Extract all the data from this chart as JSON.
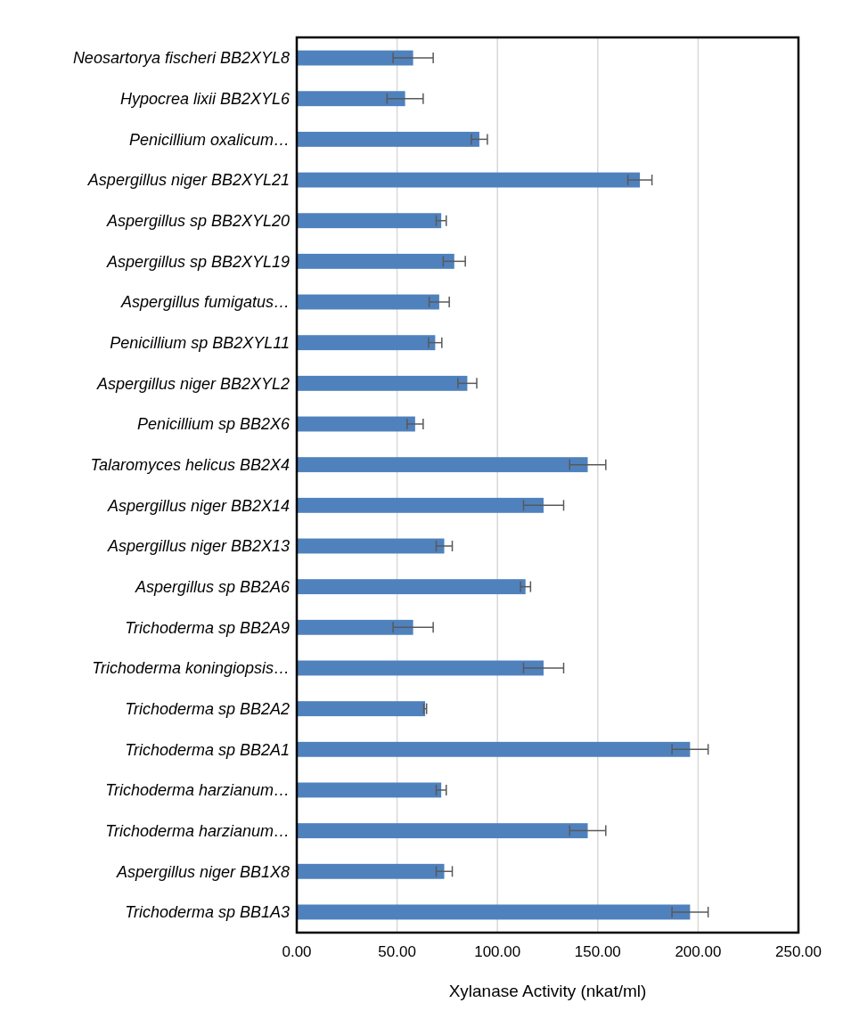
{
  "chart_data": {
    "type": "bar",
    "orientation": "horizontal",
    "xlabel": "Xylanase Activity (nkat/ml)",
    "categories": [
      "Neosartorya fischeri BB2XYL8",
      "Hypocrea lixii BB2XYL6",
      "Penicillium oxalicum…",
      "Aspergillus niger BB2XYL21",
      "Aspergillus sp BB2XYL20",
      "Aspergillus sp BB2XYL19",
      "Aspergillus fumigatus…",
      "Penicillium sp BB2XYL11",
      "Aspergillus niger BB2XYL2",
      "Penicillium sp BB2X6",
      "Talaromyces helicus BB2X4",
      "Aspergillus niger BB2X14",
      "Aspergillus niger BB2X13",
      "Aspergillus sp BB2A6",
      "Trichoderma sp BB2A9",
      "Trichoderma koningiopsis…",
      "Trichoderma sp BB2A2",
      "Trichoderma sp BB2A1",
      "Trichoderma harzianum…",
      "Trichoderma harzianum…",
      "Aspergillus niger BB1X8",
      "Trichoderma sp BB1A3"
    ],
    "values": [
      58,
      54,
      91,
      171,
      72,
      78.5,
      71,
      69,
      85,
      59,
      145,
      123,
      73.5,
      114,
      58,
      123,
      64,
      196,
      72,
      145,
      73.5,
      196
    ],
    "errors": [
      10,
      9,
      4,
      6,
      2.5,
      5.5,
      5,
      3.3,
      4.7,
      4,
      9,
      10,
      4,
      2.5,
      10,
      10,
      0.7,
      9,
      2.5,
      9,
      4,
      9
    ],
    "color": "#4f81bd",
    "xlim": [
      0,
      250
    ],
    "xticks": [
      {
        "value": 0,
        "label": "0.00"
      },
      {
        "value": 50,
        "label": "50.00"
      },
      {
        "value": 100,
        "label": "100.00"
      },
      {
        "value": 150,
        "label": "150.00"
      },
      {
        "value": 200,
        "label": "200.00"
      },
      {
        "value": 250,
        "label": "250.00"
      }
    ],
    "grid": "x"
  }
}
